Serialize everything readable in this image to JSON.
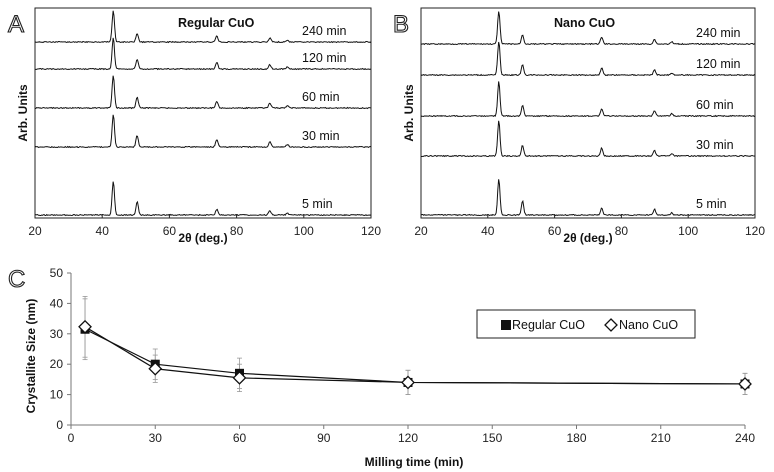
{
  "chart_data": [
    {
      "panel": "A",
      "type": "line",
      "title": "Regular CuO",
      "xlabel": "2θ (deg.)",
      "ylabel": "Arb. Units",
      "xlim": [
        20,
        120
      ],
      "xticks": [
        "20",
        "40",
        "60",
        "80",
        "100",
        "120"
      ],
      "peaks": [
        43.3,
        50.4,
        74.1,
        89.9,
        95.1
      ],
      "series": [
        {
          "name": "240 min",
          "heights": [
            0.92,
            0.25,
            0.18,
            0.12,
            0.06
          ]
        },
        {
          "name": "120 min",
          "heights": [
            0.92,
            0.27,
            0.19,
            0.13,
            0.06
          ]
        },
        {
          "name": "60 min",
          "heights": [
            0.96,
            0.32,
            0.2,
            0.14,
            0.07
          ]
        },
        {
          "name": "30 min",
          "heights": [
            0.96,
            0.34,
            0.22,
            0.15,
            0.07
          ]
        },
        {
          "name": "5 min",
          "heights": [
            1.0,
            0.39,
            0.17,
            0.13,
            0.05
          ]
        }
      ]
    },
    {
      "panel": "B",
      "type": "line",
      "title": "Nano CuO",
      "xlabel": "2θ (deg.)",
      "ylabel": "Arb. Units",
      "xlim": [
        20,
        120
      ],
      "xticks": [
        "20",
        "40",
        "60",
        "80",
        "100",
        "120"
      ],
      "peaks": [
        43.3,
        50.4,
        74.1,
        89.9,
        95.1
      ],
      "series": [
        {
          "name": "240 min",
          "heights": [
            0.92,
            0.26,
            0.19,
            0.13,
            0.06
          ]
        },
        {
          "name": "120 min",
          "heights": [
            0.94,
            0.28,
            0.2,
            0.14,
            0.06
          ]
        },
        {
          "name": "60 min",
          "heights": [
            0.96,
            0.3,
            0.21,
            0.15,
            0.07
          ]
        },
        {
          "name": "30 min",
          "heights": [
            0.98,
            0.3,
            0.22,
            0.16,
            0.07
          ]
        },
        {
          "name": "5 min",
          "heights": [
            1.0,
            0.39,
            0.19,
            0.16,
            0.06
          ]
        }
      ]
    },
    {
      "panel": "C",
      "type": "line",
      "xlabel": "Milling time (min)",
      "ylabel": "Crystallite Size (nm)",
      "xlim": [
        0,
        240
      ],
      "ylim": [
        0,
        50
      ],
      "xticks": [
        "0",
        "30",
        "60",
        "90",
        "120",
        "150",
        "180",
        "210",
        "240"
      ],
      "yticks": [
        "0",
        "10",
        "20",
        "30",
        "40",
        "50"
      ],
      "series": [
        {
          "name": "Regular CuO",
          "marker": "filled-square",
          "x": [
            5,
            30,
            60,
            120,
            240
          ],
          "y": [
            31.5,
            20,
            17,
            14,
            13.5
          ],
          "err": [
            10,
            5,
            5,
            4,
            3.5
          ]
        },
        {
          "name": "Nano CuO",
          "marker": "open-diamond",
          "x": [
            5,
            30,
            60,
            120,
            240
          ],
          "y": [
            32.3,
            18.5,
            15.5,
            14,
            13.5
          ],
          "err": [
            10,
            4.5,
            4.5,
            4,
            3.5
          ]
        }
      ]
    }
  ],
  "panel_letters": [
    "A",
    "B",
    "C"
  ]
}
